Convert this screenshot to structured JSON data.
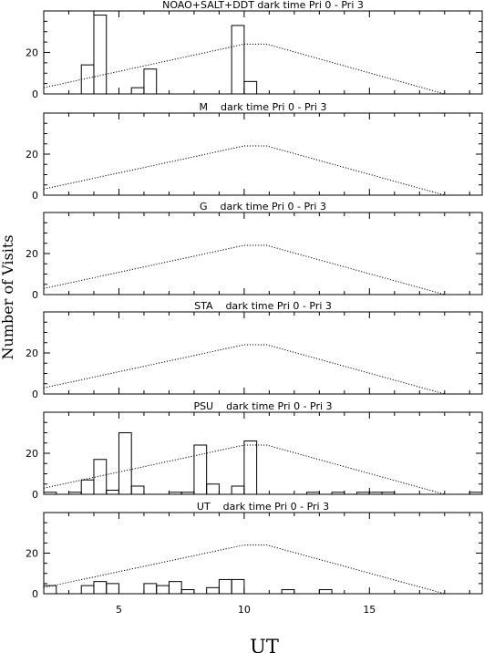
{
  "figure": {
    "ylabel": "Number of Visits",
    "xlabel": "UT"
  },
  "chart_data": [
    {
      "type": "bar",
      "title": "NOAO+SALT+DDT dark time Pri 0 - Pri 3",
      "xlim": [
        2,
        19.5
      ],
      "ylim": [
        0,
        40
      ],
      "x_ticks": [
        5,
        10,
        15
      ],
      "y_ticks": [
        0,
        20
      ],
      "bin_width": 0.5,
      "histogram": [
        {
          "x": 3.75,
          "value": 14
        },
        {
          "x": 4.25,
          "value": 38
        },
        {
          "x": 5.75,
          "value": 3
        },
        {
          "x": 6.25,
          "value": 12
        },
        {
          "x": 9.75,
          "value": 33
        },
        {
          "x": 10.25,
          "value": 6
        }
      ],
      "reference_curve": {
        "style": "dotted",
        "x": [
          2,
          10,
          10.9,
          18
        ],
        "y": [
          3,
          24,
          24,
          0
        ]
      }
    },
    {
      "type": "bar",
      "title": "M    dark time Pri 0 - Pri 3",
      "xlim": [
        2,
        19.5
      ],
      "ylim": [
        0,
        40
      ],
      "x_ticks": [
        5,
        10,
        15
      ],
      "y_ticks": [
        0,
        20
      ],
      "bin_width": 0.5,
      "histogram": [],
      "reference_curve": {
        "style": "dotted",
        "x": [
          2,
          10,
          10.9,
          18
        ],
        "y": [
          3,
          24,
          24,
          0
        ]
      }
    },
    {
      "type": "bar",
      "title": "G    dark time Pri 0 - Pri 3",
      "xlim": [
        2,
        19.5
      ],
      "ylim": [
        0,
        40
      ],
      "x_ticks": [
        5,
        10,
        15
      ],
      "y_ticks": [
        0,
        20
      ],
      "bin_width": 0.5,
      "histogram": [],
      "reference_curve": {
        "style": "dotted",
        "x": [
          2,
          10,
          10.9,
          18
        ],
        "y": [
          3,
          24,
          24,
          0
        ]
      }
    },
    {
      "type": "bar",
      "title": "STA    dark time Pri 0 - Pri 3",
      "xlim": [
        2,
        19.5
      ],
      "ylim": [
        0,
        40
      ],
      "x_ticks": [
        5,
        10,
        15
      ],
      "y_ticks": [
        0,
        20
      ],
      "bin_width": 0.5,
      "histogram": [],
      "reference_curve": {
        "style": "dotted",
        "x": [
          2,
          10,
          10.9,
          18
        ],
        "y": [
          3,
          24,
          24,
          0
        ]
      }
    },
    {
      "type": "bar",
      "title": "PSU    dark time Pri 0 - Pri 3",
      "xlim": [
        2,
        19.5
      ],
      "ylim": [
        0,
        40
      ],
      "x_ticks": [
        5,
        10,
        15
      ],
      "y_ticks": [
        0,
        20
      ],
      "bin_width": 0.5,
      "histogram": [
        {
          "x": 2.25,
          "value": 1
        },
        {
          "x": 3.25,
          "value": 1
        },
        {
          "x": 3.75,
          "value": 7
        },
        {
          "x": 4.25,
          "value": 17
        },
        {
          "x": 4.75,
          "value": 2
        },
        {
          "x": 5.25,
          "value": 30
        },
        {
          "x": 5.75,
          "value": 4
        },
        {
          "x": 7.25,
          "value": 1
        },
        {
          "x": 7.75,
          "value": 1
        },
        {
          "x": 8.25,
          "value": 24
        },
        {
          "x": 8.75,
          "value": 5
        },
        {
          "x": 9.75,
          "value": 4
        },
        {
          "x": 10.25,
          "value": 26
        },
        {
          "x": 12.75,
          "value": 1
        },
        {
          "x": 13.75,
          "value": 1
        },
        {
          "x": 14.75,
          "value": 1
        },
        {
          "x": 15.25,
          "value": 1
        },
        {
          "x": 15.75,
          "value": 1
        },
        {
          "x": 19.25,
          "value": 1
        }
      ],
      "reference_curve": {
        "style": "dotted",
        "x": [
          2,
          10,
          10.9,
          18
        ],
        "y": [
          3,
          24,
          24,
          0
        ]
      }
    },
    {
      "type": "bar",
      "title": "UT    dark time Pri 0 - Pri 3",
      "xlim": [
        2,
        19.5
      ],
      "ylim": [
        0,
        40
      ],
      "x_ticks": [
        5,
        10,
        15
      ],
      "y_ticks": [
        0,
        20
      ],
      "bin_width": 0.5,
      "histogram": [
        {
          "x": 2.25,
          "value": 4
        },
        {
          "x": 3.75,
          "value": 4
        },
        {
          "x": 4.25,
          "value": 6
        },
        {
          "x": 4.75,
          "value": 5
        },
        {
          "x": 6.25,
          "value": 5
        },
        {
          "x": 6.75,
          "value": 4
        },
        {
          "x": 7.25,
          "value": 6
        },
        {
          "x": 7.75,
          "value": 2
        },
        {
          "x": 8.75,
          "value": 3
        },
        {
          "x": 9.25,
          "value": 7
        },
        {
          "x": 9.75,
          "value": 7
        },
        {
          "x": 11.75,
          "value": 2
        },
        {
          "x": 13.25,
          "value": 2
        }
      ],
      "reference_curve": {
        "style": "dotted",
        "x": [
          2,
          10,
          10.9,
          18
        ],
        "y": [
          3,
          24,
          24,
          0
        ]
      }
    }
  ]
}
